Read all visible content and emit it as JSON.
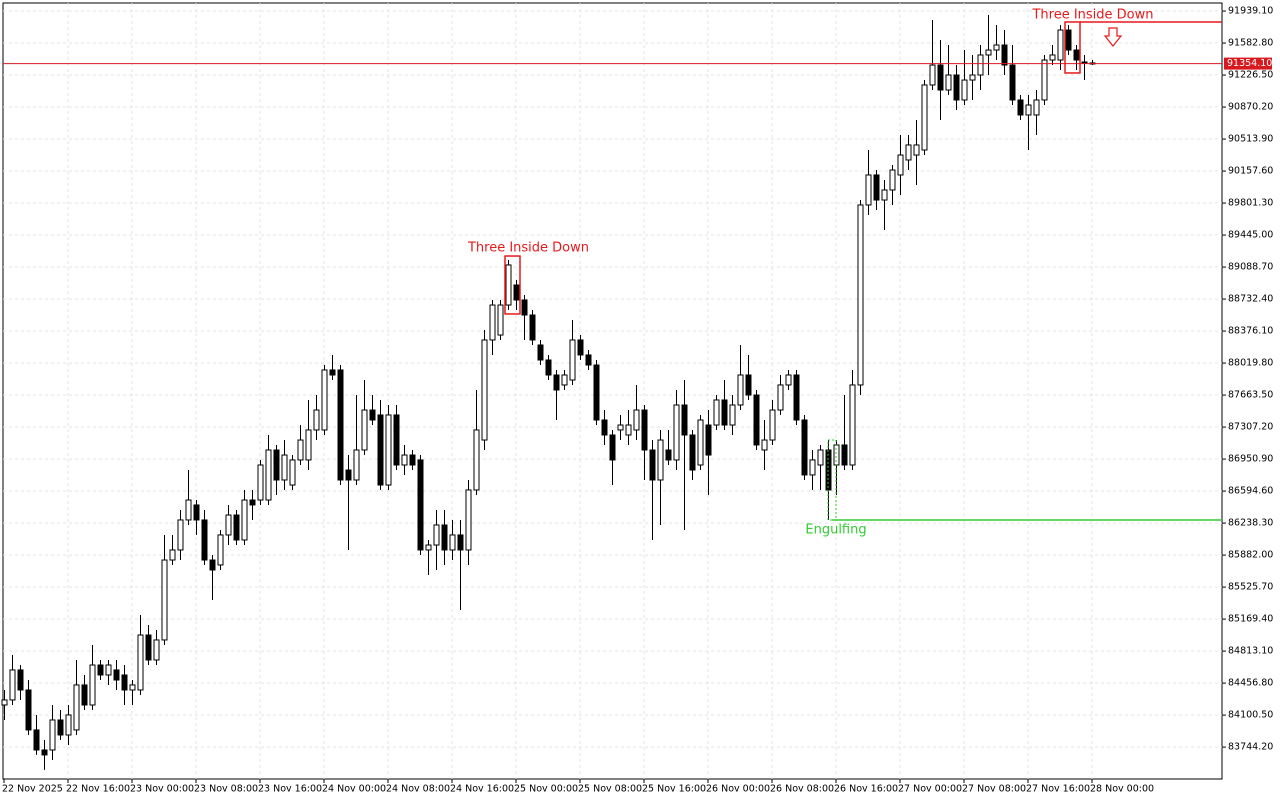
{
  "chart_data": {
    "type": "candlestick",
    "categories": [
      "22 Nov 2025",
      null,
      null,
      null,
      null,
      null,
      null,
      null,
      "22 Nov 16:00",
      null,
      null,
      null,
      null,
      null,
      null,
      null,
      "23 Nov 00:00",
      null,
      null,
      null,
      null,
      null,
      null,
      null,
      "23 Nov 08:00",
      null,
      null,
      null,
      null,
      null,
      null,
      null,
      "23 Nov 16:00",
      null,
      null,
      null,
      null,
      null,
      null,
      null,
      "24 Nov 00:00",
      null,
      null,
      null,
      null,
      null,
      null,
      null,
      "24 Nov 08:00",
      null,
      null,
      null,
      null,
      null,
      null,
      null,
      "24 Nov 16:00",
      null,
      null,
      null,
      null,
      null,
      null,
      null,
      "25 Nov 00:00",
      null,
      null,
      null,
      null,
      null,
      null,
      null,
      "25 Nov 08:00",
      null,
      null,
      null,
      null,
      null,
      null,
      null,
      "25 Nov 16:00",
      null,
      null,
      null,
      null,
      null,
      null,
      null,
      "26 Nov 00:00",
      null,
      null,
      null,
      null,
      null,
      null,
      null,
      "26 Nov 08:00",
      null,
      null,
      null,
      null,
      null,
      null,
      null,
      "26 Nov 16:00",
      null,
      null,
      null,
      null,
      null,
      null,
      null,
      "27 Nov 00:00",
      null,
      null,
      null,
      null,
      null,
      null,
      null,
      "27 Nov 08:00",
      null,
      null,
      null,
      null,
      null,
      null,
      null,
      "27 Nov 16:00",
      null,
      null,
      null,
      null,
      null,
      null,
      null,
      "28 Nov 00:00"
    ],
    "open": [
      84213,
      84269,
      84603,
      84380,
      83935,
      83712,
      83712,
      84046,
      83879,
      83935,
      84436,
      84213,
      84658,
      84547,
      84603,
      84547,
      84380,
      84380,
      84992,
      84714,
      84937,
      85827,
      85939,
      86273,
      86440,
      86273,
      85827,
      85772,
      86106,
      86328,
      86050,
      86495,
      86495,
      86495,
      87052,
      86718,
      86662,
      86941,
      86941,
      87275,
      87275,
      87943,
      87943,
      86829,
      86718,
      87052,
      87497,
      87442,
      86662,
      87442,
      86885,
      86996,
      86941,
      85939,
      85994,
      86217,
      85939,
      86106,
      85939,
      86607,
      87163,
      88277,
      88332,
      88666,
      88889,
      88722,
      88555,
      88221,
      88054,
      87887,
      87776,
      87831,
      88277,
      88110,
      87998,
      87386,
      87219,
      87275,
      87219,
      87275,
      87497,
      87052,
      86718,
      87052,
      86941,
      87553,
      87219,
      86885,
      87330,
      87330,
      87609,
      87330,
      87553,
      87887,
      87664,
      87052,
      87163,
      87497,
      87776,
      87887,
      87386,
      86774,
      86885,
      87052,
      86885,
      87108,
      86885,
      87776,
      89780,
      90114,
      89835,
      89947,
      90114,
      90281,
      90336,
      90392,
      91116,
      91338,
      91060,
      91227,
      90949,
      91171,
      91227,
      91450,
      91505,
      91561,
      91338,
      90949,
      90782,
      90782,
      90949,
      91394,
      91394,
      91728,
      91505,
      91372,
      91361
    ],
    "high": [
      84380,
      84770,
      84658,
      84491,
      84102,
      83824,
      84213,
      84157,
      84213,
      84714,
      84547,
      84881,
      84714,
      84714,
      84714,
      84658,
      84491,
      85215,
      85104,
      85048,
      86106,
      86106,
      86384,
      86829,
      86495,
      86384,
      85883,
      86161,
      86440,
      86384,
      86607,
      86607,
      86941,
      87219,
      87108,
      87163,
      86996,
      87330,
      87609,
      87664,
      87998,
      88110,
      87998,
      86996,
      87664,
      87831,
      87664,
      87609,
      87553,
      87553,
      87108,
      87052,
      86996,
      86050,
      86384,
      86384,
      86273,
      86273,
      86718,
      87720,
      88388,
      88722,
      88722,
      89167,
      88945,
      88778,
      88611,
      88277,
      88110,
      87943,
      87943,
      88499,
      88332,
      88165,
      88054,
      87497,
      87275,
      87442,
      87497,
      87776,
      87553,
      87163,
      87275,
      87275,
      87720,
      87831,
      87275,
      87442,
      87497,
      87664,
      87831,
      87664,
      88221,
      88110,
      87720,
      87386,
      87609,
      87887,
      87943,
      87943,
      87442,
      87052,
      87108,
      87163,
      87163,
      87664,
      87943,
      89835,
      90392,
      90169,
      90058,
      90225,
      90559,
      90559,
      90726,
      91171,
      91839,
      91617,
      91561,
      91338,
      91505,
      91450,
      91561,
      91895,
      91784,
      91728,
      91561,
      91004,
      91004,
      91060,
      91450,
      91561,
      91784,
      91784,
      91561,
      91450,
      91394
    ],
    "low": [
      84046,
      84213,
      84269,
      83879,
      83657,
      83490,
      83601,
      83824,
      83768,
      83879,
      84157,
      84157,
      84491,
      84436,
      84380,
      84213,
      84213,
      84324,
      84658,
      84658,
      84881,
      85772,
      85827,
      86217,
      86106,
      85772,
      85382,
      85716,
      85994,
      85994,
      85994,
      86273,
      86440,
      86440,
      86551,
      86607,
      86607,
      86885,
      86829,
      87163,
      87219,
      87831,
      86662,
      85939,
      86662,
      86996,
      87330,
      86607,
      86607,
      86829,
      86774,
      86829,
      85883,
      85660,
      85716,
      85772,
      85827,
      85271,
      85772,
      86551,
      87052,
      88110,
      88277,
      88611,
      88611,
      88277,
      88221,
      87998,
      87831,
      87386,
      87720,
      87776,
      88054,
      87943,
      87330,
      87108,
      86662,
      87163,
      87108,
      87163,
      86718,
      86050,
      86217,
      86885,
      86829,
      86161,
      86718,
      86829,
      86551,
      87275,
      87275,
      87219,
      87497,
      87609,
      87052,
      86829,
      87108,
      87442,
      87720,
      87330,
      86718,
      86607,
      86607,
      86273,
      86551,
      86829,
      86829,
      87664,
      89668,
      89724,
      89501,
      89780,
      89891,
      90169,
      90002,
      90336,
      91060,
      90726,
      91004,
      90837,
      90893,
      90949,
      91060,
      91227,
      91394,
      91227,
      90893,
      90726,
      90392,
      90559,
      90893,
      91338,
      91283,
      91450,
      91283,
      91171,
      91338
    ],
    "close": [
      84269,
      84603,
      84380,
      83935,
      83712,
      83657,
      84046,
      83879,
      84102,
      84436,
      84213,
      84658,
      84547,
      84658,
      84491,
      84380,
      84436,
      84992,
      84714,
      84937,
      85827,
      85939,
      86273,
      86495,
      86273,
      85827,
      85716,
      86106,
      86328,
      86050,
      86495,
      86440,
      86885,
      87052,
      86718,
      86996,
      86941,
      87163,
      87275,
      87497,
      87943,
      87887,
      86718,
      86718,
      87052,
      87497,
      87386,
      86662,
      87442,
      86885,
      86996,
      86885,
      85939,
      85994,
      86217,
      85939,
      86106,
      85939,
      86607,
      87275,
      88277,
      88666,
      88666,
      89112,
      88722,
      88555,
      88277,
      88054,
      87887,
      87720,
      87887,
      88277,
      88110,
      87998,
      87386,
      87219,
      86941,
      87330,
      87330,
      87497,
      87052,
      86718,
      87163,
      86941,
      87553,
      87219,
      86829,
      87386,
      86996,
      87609,
      87330,
      87553,
      87887,
      87664,
      87108,
      87163,
      87497,
      87776,
      87887,
      87386,
      86774,
      86941,
      87052,
      86607,
      87108,
      86885,
      87776,
      89780,
      90114,
      89835,
      89947,
      90169,
      90336,
      90448,
      90448,
      91116,
      91338,
      91060,
      91227,
      90949,
      91171,
      91227,
      91450,
      91505,
      91561,
      91338,
      90949,
      90782,
      90893,
      90949,
      91394,
      91450,
      91728,
      91505,
      91394,
      91361,
      91354.1
    ],
    "up_color": "#ffffff",
    "down_color": "#000000",
    "ylim": [
      83388.9,
      92028.7
    ],
    "yticks": [
      {
        "value": 91939.1,
        "label": "91939.10"
      },
      {
        "value": 91582.8,
        "label": "91582.80"
      },
      {
        "value": 91226.5,
        "label": "91226.50"
      },
      {
        "value": 90870.2,
        "label": "90870.20"
      },
      {
        "value": 90513.9,
        "label": "90513.90"
      },
      {
        "value": 90157.6,
        "label": "90157.60"
      },
      {
        "value": 89801.3,
        "label": "89801.30"
      },
      {
        "value": 89445,
        "label": "89445.00"
      },
      {
        "value": 89088.7,
        "label": "89088.70"
      },
      {
        "value": 88732.4,
        "label": "88732.40"
      },
      {
        "value": 88376.1,
        "label": "88376.10"
      },
      {
        "value": 88019.8,
        "label": "88019.80"
      },
      {
        "value": 87663.5,
        "label": "87663.50"
      },
      {
        "value": 87307.2,
        "label": "87307.20"
      },
      {
        "value": 86950.9,
        "label": "86950.90"
      },
      {
        "value": 86594.6,
        "label": "86594.60"
      },
      {
        "value": 86238.3,
        "label": "86238.30"
      },
      {
        "value": 85882,
        "label": "85882.00"
      },
      {
        "value": 85525.7,
        "label": "85525.70"
      },
      {
        "value": 85169.4,
        "label": "85169.40"
      },
      {
        "value": 84813.1,
        "label": "84813.10"
      },
      {
        "value": 84456.8,
        "label": "84456.80"
      },
      {
        "value": 84100.5,
        "label": "84100.50"
      },
      {
        "value": 83744.2,
        "label": "83744.20"
      }
    ],
    "grid": true,
    "current_price": {
      "value": 91354.1,
      "label": "91354.10",
      "color": "#d71920"
    },
    "annotations": [
      {
        "text": "Three Inside Down",
        "color": "#e8191c"
      },
      {
        "text": "Three Inside Down",
        "color": "#e8191c"
      },
      {
        "text": "Engulfing",
        "color": "#33cc33"
      }
    ]
  }
}
